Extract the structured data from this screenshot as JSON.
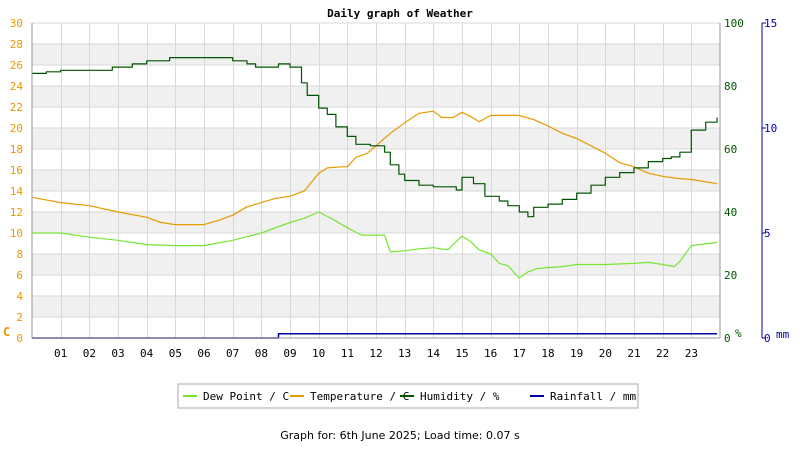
{
  "chart_data": {
    "type": "line",
    "title": "Daily graph of Weather",
    "x_ticks": [
      "01",
      "02",
      "03",
      "04",
      "05",
      "06",
      "07",
      "08",
      "09",
      "10",
      "11",
      "12",
      "13",
      "14",
      "15",
      "16",
      "17",
      "18",
      "19",
      "20",
      "21",
      "22",
      "23"
    ],
    "xlim": [
      0,
      24
    ],
    "axes": {
      "left": {
        "unit": "C",
        "min": 0,
        "max": 30,
        "ticks": [
          0,
          2,
          4,
          6,
          8,
          10,
          12,
          14,
          16,
          18,
          20,
          22,
          24,
          26,
          28,
          30
        ],
        "color": "#e69a00"
      },
      "right1": {
        "unit": "%",
        "min": 0,
        "max": 100,
        "ticks": [
          0,
          20,
          40,
          60,
          80,
          100
        ],
        "color": "#005500"
      },
      "right2": {
        "unit": "mm",
        "min": 0,
        "max": 15,
        "ticks": [
          0,
          5,
          10,
          15
        ],
        "color": "#0000aa"
      }
    },
    "grid": true,
    "legend_position": "bottom",
    "series": [
      {
        "name": "Dew Point / C",
        "axis": "left",
        "color": "#77e633",
        "step": false,
        "x": [
          0,
          1,
          2,
          3,
          4,
          5,
          6,
          7,
          8,
          9,
          9.5,
          10,
          10.5,
          11,
          11.5,
          12,
          12.3,
          12.5,
          13,
          13.5,
          14,
          14.5,
          15,
          15.3,
          15.6,
          16,
          16.3,
          16.6,
          17,
          17.3,
          17.6,
          18,
          18.5,
          19,
          20,
          21,
          21.5,
          22,
          22.4,
          22.6,
          23,
          23.9
        ],
        "y": [
          10,
          10,
          9.6,
          9.3,
          8.9,
          8.8,
          8.8,
          9.3,
          10,
          11,
          11.4,
          12,
          11.3,
          10.5,
          9.8,
          9.8,
          9.8,
          8.2,
          8.3,
          8.5,
          8.6,
          8.4,
          9.7,
          9.2,
          8.4,
          8,
          7.1,
          6.9,
          5.7,
          6.3,
          6.6,
          6.7,
          6.8,
          7,
          7,
          7.1,
          7.2,
          7,
          6.8,
          7.3,
          8.8,
          9.1
        ]
      },
      {
        "name": "Temperature / C",
        "axis": "left",
        "color": "#e69a00",
        "step": false,
        "x": [
          0,
          1,
          2,
          3,
          4,
          4.5,
          5,
          6,
          6.5,
          7,
          7.5,
          8,
          8.5,
          9,
          9.5,
          10,
          10.3,
          10.8,
          11,
          11.3,
          11.7,
          12,
          12.5,
          13,
          13.5,
          14,
          14.3,
          14.7,
          15,
          15.3,
          15.6,
          16,
          16.5,
          17,
          17.5,
          18,
          18.5,
          19,
          19.5,
          20,
          20.5,
          21,
          21.5,
          22,
          22.5,
          23,
          23.9
        ],
        "y": [
          13.4,
          12.9,
          12.6,
          12,
          11.5,
          11,
          10.8,
          10.8,
          11.2,
          11.7,
          12.5,
          12.9,
          13.3,
          13.5,
          14,
          15.7,
          16.2,
          16.3,
          16.3,
          17.2,
          17.6,
          18.3,
          19.5,
          20.5,
          21.4,
          21.6,
          21,
          21,
          21.5,
          21.1,
          20.6,
          21.2,
          21.2,
          21.2,
          20.8,
          20.2,
          19.5,
          19,
          18.3,
          17.6,
          16.7,
          16.3,
          15.7,
          15.4,
          15.2,
          15.1,
          14.7
        ]
      },
      {
        "name": "Humidity / %",
        "axis": "right1",
        "color": "#005500",
        "step": true,
        "x": [
          0,
          0.5,
          1,
          2,
          2.8,
          3.5,
          4,
          4.8,
          5.5,
          6,
          7,
          7.5,
          7.8,
          8.3,
          8.6,
          9,
          9.4,
          9.6,
          10,
          10.3,
          10.6,
          11,
          11.3,
          11.8,
          12.3,
          12.5,
          12.8,
          13,
          13.5,
          14,
          14.5,
          14.8,
          15,
          15.4,
          15.8,
          16.3,
          16.6,
          17,
          17.3,
          17.5,
          18,
          18.5,
          19,
          19.5,
          20,
          20.5,
          21,
          21.5,
          22,
          22.3,
          22.6,
          23,
          23.5,
          23.9
        ],
        "y": [
          84,
          84.5,
          85,
          85,
          86,
          87,
          88,
          89,
          89,
          89,
          88,
          87,
          86,
          86,
          87,
          86,
          81,
          77,
          73,
          71,
          67,
          64,
          61.5,
          61,
          59,
          55,
          52,
          50,
          48.5,
          48,
          48,
          47,
          51,
          49,
          45,
          43.5,
          42,
          40,
          38.5,
          41.5,
          42.5,
          44,
          46,
          48.5,
          51,
          52.5,
          54,
          56,
          57,
          57.5,
          59,
          66,
          68.5,
          70
        ]
      },
      {
        "name": "Rainfall / mm",
        "axis": "right2",
        "color": "#0000aa",
        "step": true,
        "x": [
          0,
          8.6,
          8.6,
          23.9
        ],
        "y": [
          0,
          0,
          0.2,
          0.2
        ]
      }
    ]
  },
  "footer": "Graph for: 6th June 2025; Load time: 0.07 s"
}
